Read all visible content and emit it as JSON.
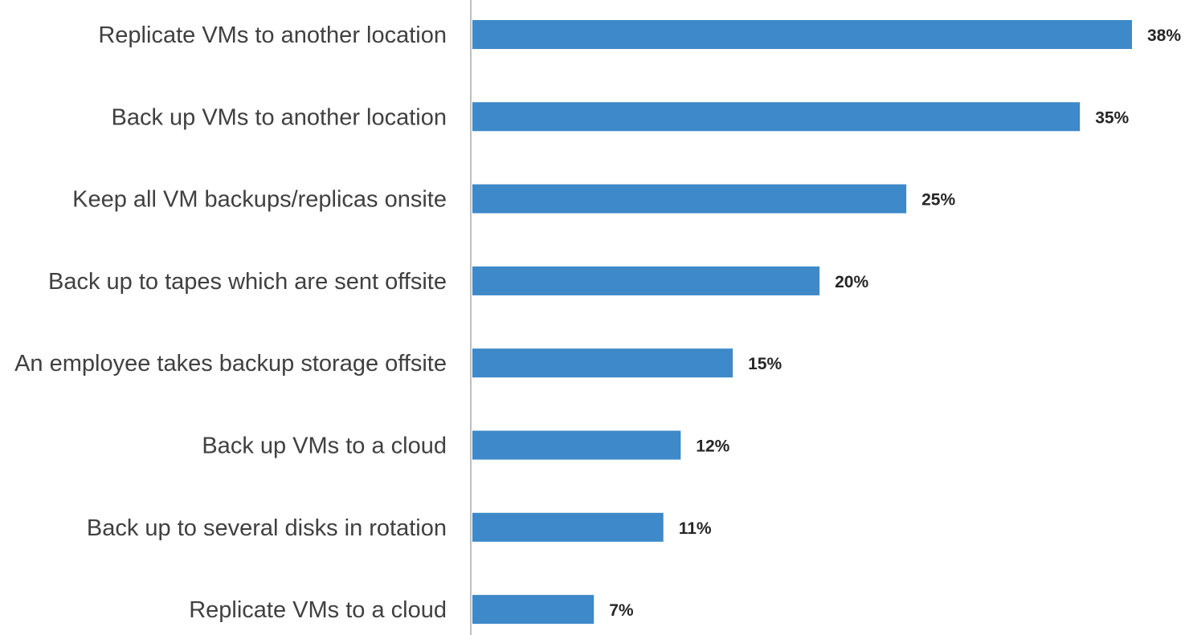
{
  "chart_data": {
    "type": "bar",
    "orientation": "horizontal",
    "categories": [
      "Replicate VMs to another location",
      "Back up VMs to another location",
      "Keep all VM backups/replicas onsite",
      "Back up to tapes which are sent offsite",
      "An employee takes backup storage offsite",
      "Back up VMs to a cloud",
      "Back up to several disks in rotation",
      "Replicate VMs to a cloud"
    ],
    "values": [
      38,
      35,
      25,
      20,
      15,
      12,
      11,
      7
    ],
    "value_labels": [
      "38%",
      "35%",
      "25%",
      "20%",
      "15%",
      "12%",
      "11%",
      "7%"
    ],
    "unit": "%",
    "xlim": [
      0,
      38
    ],
    "title": "",
    "xlabel": "",
    "ylabel": "",
    "grid": false,
    "legend": "none",
    "colors": {
      "bar": "#3d89c9",
      "axis": "#bfbfbf",
      "category_text": "#404040",
      "value_text": "#262626"
    }
  }
}
